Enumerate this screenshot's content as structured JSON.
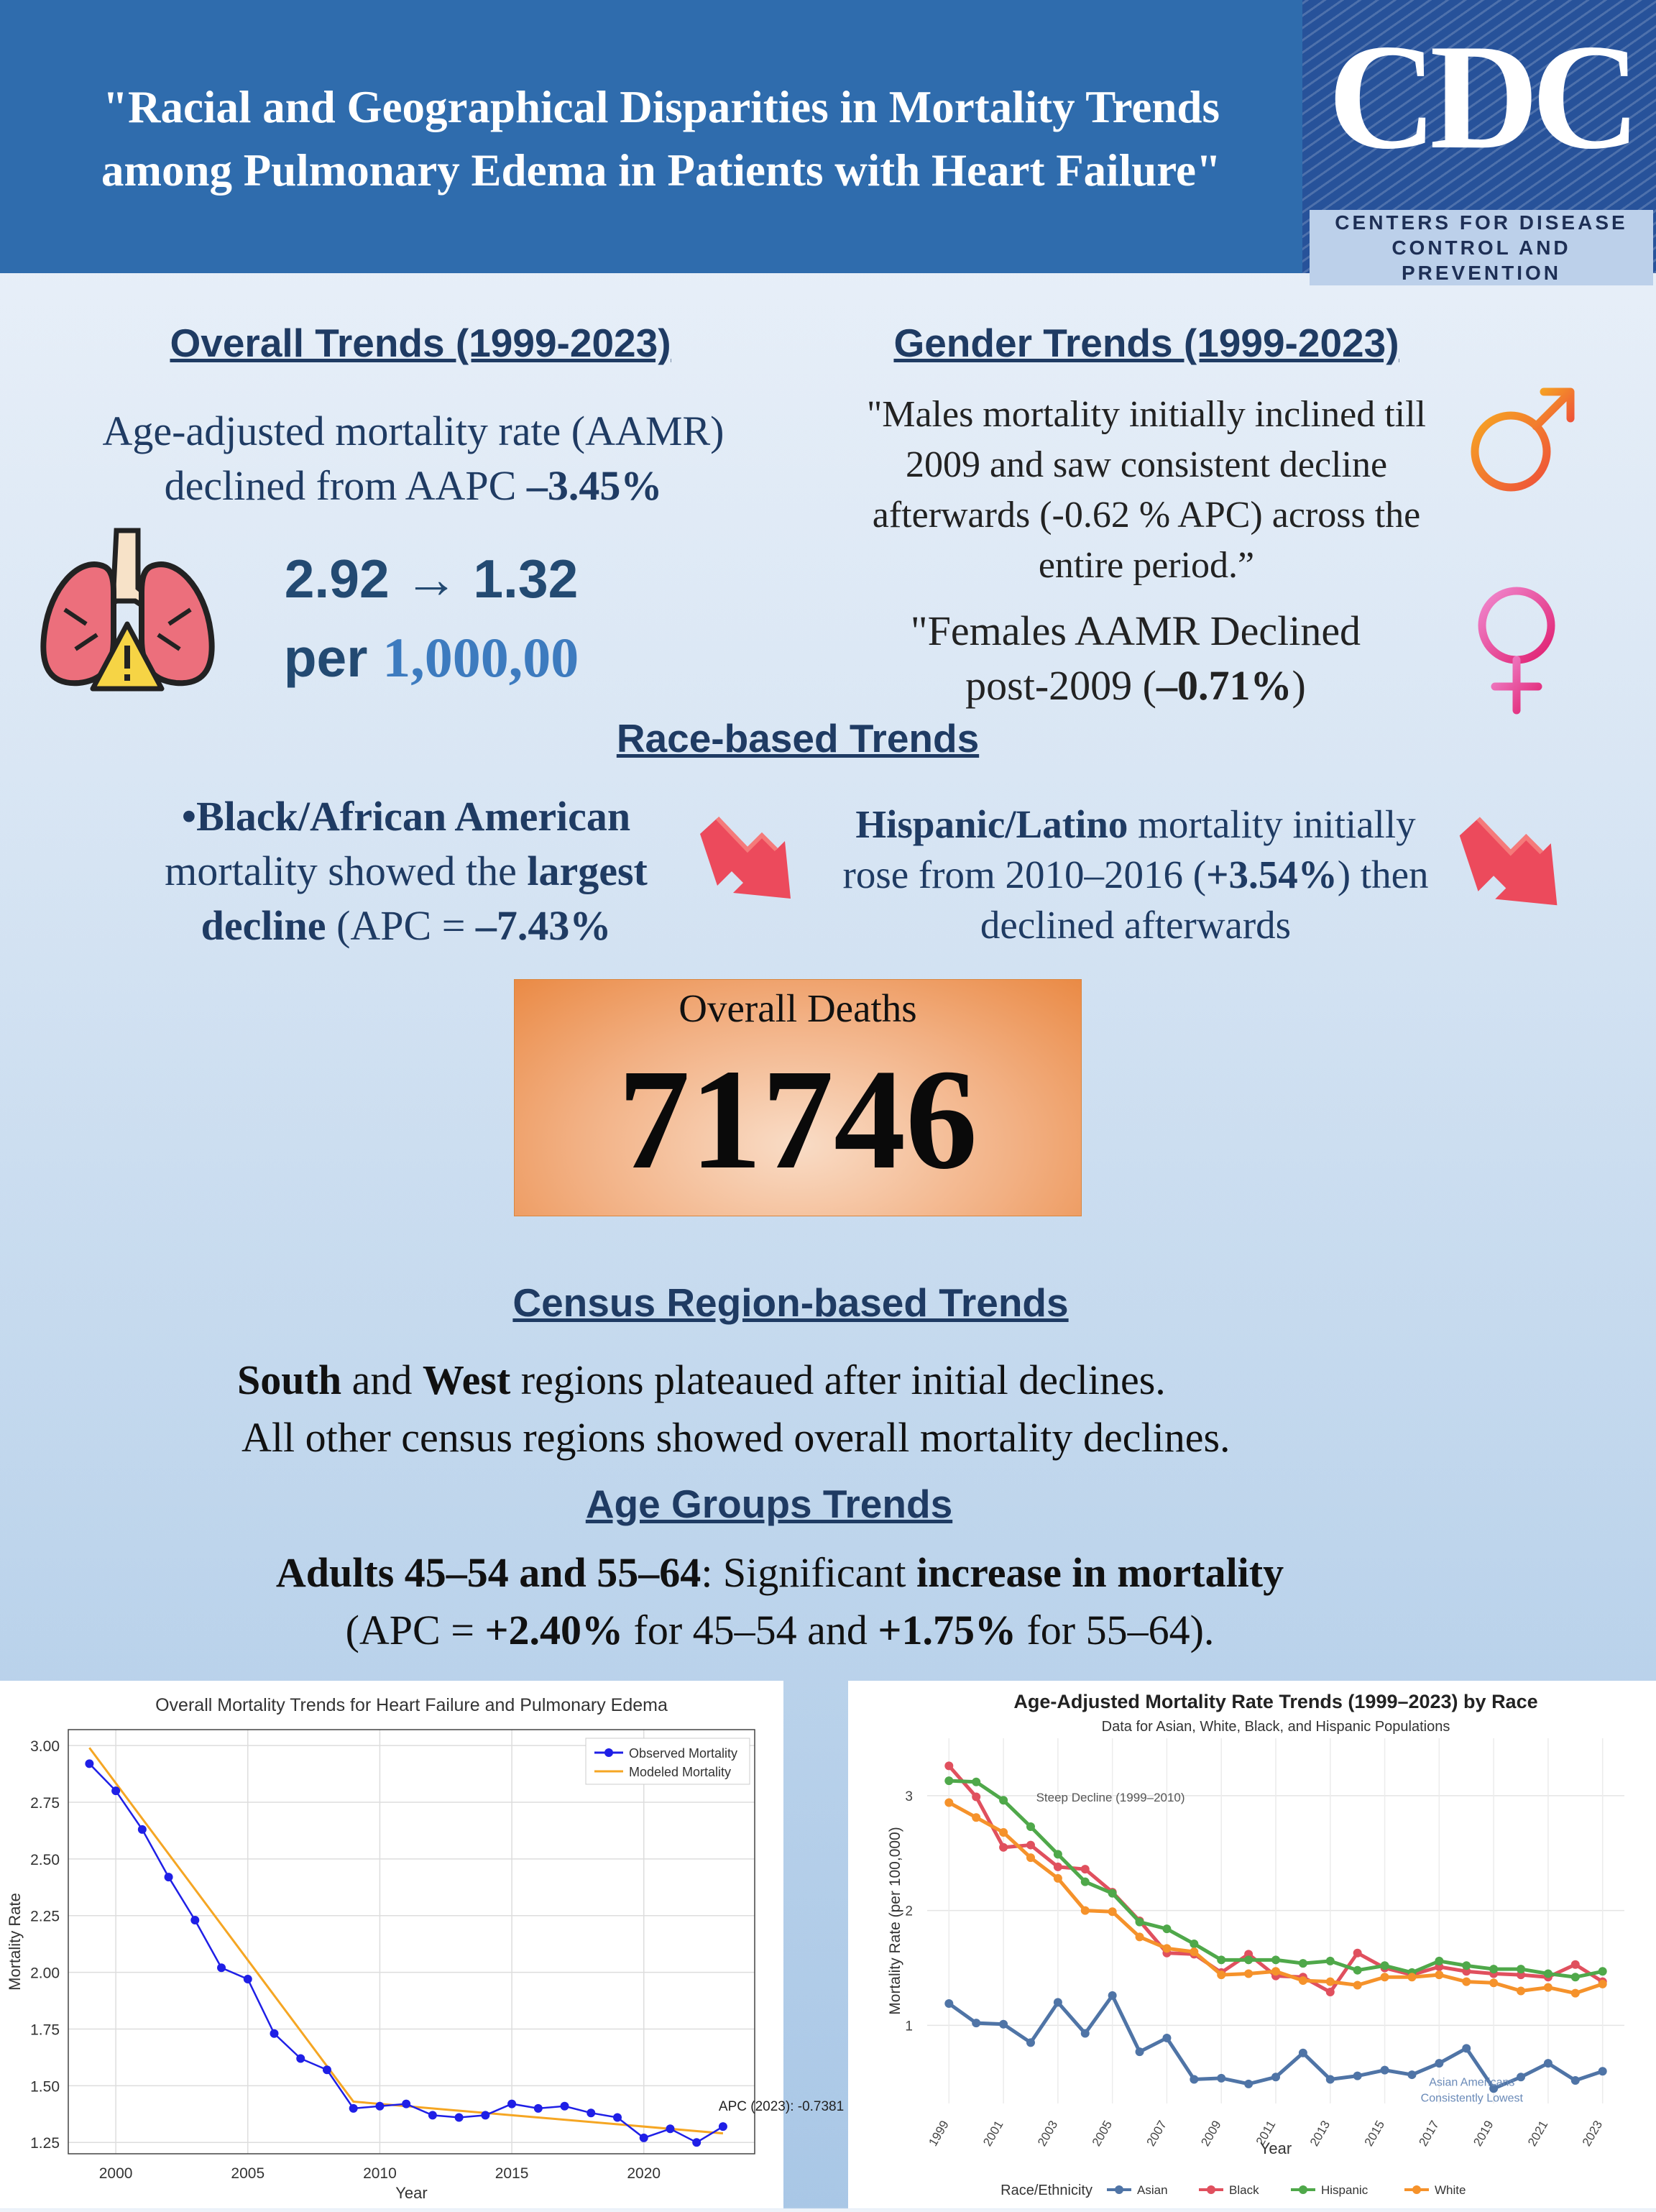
{
  "header": {
    "title_line1": "\"Racial and Geographical Disparities in Mortality Trends",
    "title_line2": "among Pulmonary Edema in Patients with Heart Failure\"",
    "logo_text": "CDC",
    "logo_sub1": "Centers for Disease",
    "logo_sub2": "Control and Prevention"
  },
  "overall": {
    "heading": "Overall Trends (1999-2023)",
    "line1": "Age-adjusted mortality rate (AAMR)",
    "line2_pre": "declined from AAPC ",
    "line2_val": "–3.45%",
    "rate": "2.92 → 1.32",
    "per_pre": "per ",
    "per_val": "1,000,00"
  },
  "gender": {
    "heading": "Gender Trends (1999-2023)",
    "male_1": "\"Males mortality initially inclined till",
    "male_2": "2009 and saw consistent decline",
    "male_3": "afterwards  (-0.62 % APC) across the",
    "male_4": "entire period.”",
    "female_1": "\"Females AAMR Declined",
    "female_2_pre": "post-2009 (",
    "female_2_val": "–0.71%",
    "female_2_post": ")"
  },
  "race": {
    "heading": "Race-based Trends",
    "black_1": "•Black/African American",
    "black_2_pre": "mortality showed the ",
    "black_2_bold": "largest",
    "black_3_bold": "decline",
    "black_3_rest": " (APC = ",
    "black_3_val": "–7.43%",
    "hisp_1_bold": "Hispanic/Latino",
    "hisp_1_rest": " mortality initially",
    "hisp_2_pre": "rose from 2010–2016 (",
    "hisp_2_val": "+3.54%",
    "hisp_2_post": ") then",
    "hisp_3": "declined afterwards"
  },
  "deaths": {
    "label": "Overall Deaths",
    "value": "71746"
  },
  "census": {
    "heading": " Census Region-based Trends",
    "l1_b1": "South",
    "l1_t1": " and ",
    "l1_b2": "West",
    "l1_t2": " regions plateaued after initial declines.",
    "l2": "All other census regions showed overall mortality declines."
  },
  "age": {
    "heading": "Age Groups Trends",
    "l1_b1": "Adults 45–54 and 55–64",
    "l1_t1": ": Significant ",
    "l1_b2": "increase in mortality",
    "l2_t1": "(APC = ",
    "l2_b1": "+2.40%",
    "l2_t2": " for 45–54 and ",
    "l2_b2": "+1.75%",
    "l2_t3": " for 55–64)."
  },
  "colors": {
    "header": "#2f6cad",
    "navy": "#1f3b63",
    "blue_accent": "#3d7bbf",
    "male": "#f07b2a",
    "female": "#e2339f"
  },
  "chart_data": [
    {
      "type": "line",
      "title": "Overall Mortality Trends for Heart Failure and Pulmonary Edema",
      "xlabel": "Year",
      "ylabel": "Mortality Rate",
      "xlim": [
        1998.2,
        2024.2
      ],
      "ylim": [
        1.2,
        3.07
      ],
      "xticks": [
        2000,
        2005,
        2010,
        2015,
        2020
      ],
      "yticks": [
        1.25,
        1.5,
        1.75,
        2.0,
        2.25,
        2.5,
        2.75,
        3.0
      ],
      "ytick_labels": [
        "1.25",
        "1.50",
        "1.75",
        "2.00",
        "2.25",
        "2.50",
        "2.75",
        "3.00"
      ],
      "grid": true,
      "legend": "top-right",
      "annotation": "APC (2023): -0.7381",
      "x": [
        1999,
        2000,
        2001,
        2002,
        2003,
        2004,
        2005,
        2006,
        2007,
        2008,
        2009,
        2010,
        2011,
        2012,
        2013,
        2014,
        2015,
        2016,
        2017,
        2018,
        2019,
        2020,
        2021,
        2022,
        2023
      ],
      "series": [
        {
          "name": "Observed Mortality",
          "color": "#1f1fe6",
          "values": [
            2.92,
            2.8,
            2.63,
            2.42,
            2.23,
            2.02,
            1.97,
            1.73,
            1.62,
            1.57,
            1.4,
            1.41,
            1.42,
            1.37,
            1.36,
            1.37,
            1.42,
            1.4,
            1.41,
            1.38,
            1.36,
            1.27,
            1.31,
            1.25,
            1.32
          ]
        },
        {
          "name": "Modeled Mortality",
          "color": "#f5a623",
          "x": [
            1999,
            2009,
            2023
          ],
          "values": [
            2.99,
            1.43,
            1.29
          ]
        }
      ]
    },
    {
      "type": "line",
      "title": "Age-Adjusted Mortality Rate Trends (1999–2023) by Race",
      "subtitle": "Data for Asian, White, Black, and Hispanic Populations",
      "xlabel": "Year",
      "ylabel": "Mortality Rate (per 100,000)",
      "xlim": [
        1998.2,
        2023.8
      ],
      "ylim": [
        0.32,
        3.5
      ],
      "yticks": [
        1,
        2,
        3
      ],
      "xticks": [
        1999,
        2001,
        2003,
        2005,
        2007,
        2009,
        2011,
        2013,
        2015,
        2017,
        2019,
        2021,
        2023
      ],
      "grid": true,
      "legend_title": "Race/Ethnicity",
      "legend": "bottom",
      "annotations": [
        "Steep Decline (1999–2010)",
        "Asian Americans",
        "Consistently Lowest"
      ],
      "x": [
        1999,
        2000,
        2001,
        2002,
        2003,
        2004,
        2005,
        2006,
        2007,
        2008,
        2009,
        2010,
        2011,
        2012,
        2013,
        2014,
        2015,
        2016,
        2017,
        2018,
        2019,
        2020,
        2021,
        2022,
        2023
      ],
      "series": [
        {
          "name": "Asian",
          "color": "#4f74a6",
          "values": [
            1.19,
            1.02,
            1.01,
            0.85,
            1.2,
            0.93,
            1.26,
            0.77,
            0.89,
            0.53,
            0.54,
            0.49,
            0.55,
            0.76,
            0.53,
            0.56,
            0.61,
            0.57,
            0.67,
            0.8,
            0.45,
            0.55,
            0.67,
            0.52,
            0.6
          ]
        },
        {
          "name": "Black",
          "color": "#e0505e",
          "values": [
            3.26,
            2.99,
            2.55,
            2.57,
            2.38,
            2.36,
            2.16,
            1.91,
            1.63,
            1.62,
            1.46,
            1.62,
            1.43,
            1.42,
            1.29,
            1.63,
            1.5,
            1.44,
            1.51,
            1.47,
            1.45,
            1.44,
            1.42,
            1.53,
            1.38
          ]
        },
        {
          "name": "Hispanic",
          "color": "#4fa84a",
          "values": [
            3.13,
            3.12,
            2.96,
            2.73,
            2.49,
            2.25,
            2.15,
            1.9,
            1.84,
            1.71,
            1.57,
            1.57,
            1.57,
            1.54,
            1.56,
            1.48,
            1.52,
            1.46,
            1.56,
            1.52,
            1.49,
            1.49,
            1.45,
            1.42,
            1.47
          ]
        },
        {
          "name": "White",
          "color": "#f5922b",
          "values": [
            2.94,
            2.81,
            2.68,
            2.46,
            2.28,
            2.0,
            1.99,
            1.77,
            1.67,
            1.64,
            1.44,
            1.45,
            1.47,
            1.39,
            1.38,
            1.35,
            1.42,
            1.42,
            1.44,
            1.38,
            1.37,
            1.3,
            1.33,
            1.28,
            1.36
          ]
        }
      ]
    }
  ]
}
